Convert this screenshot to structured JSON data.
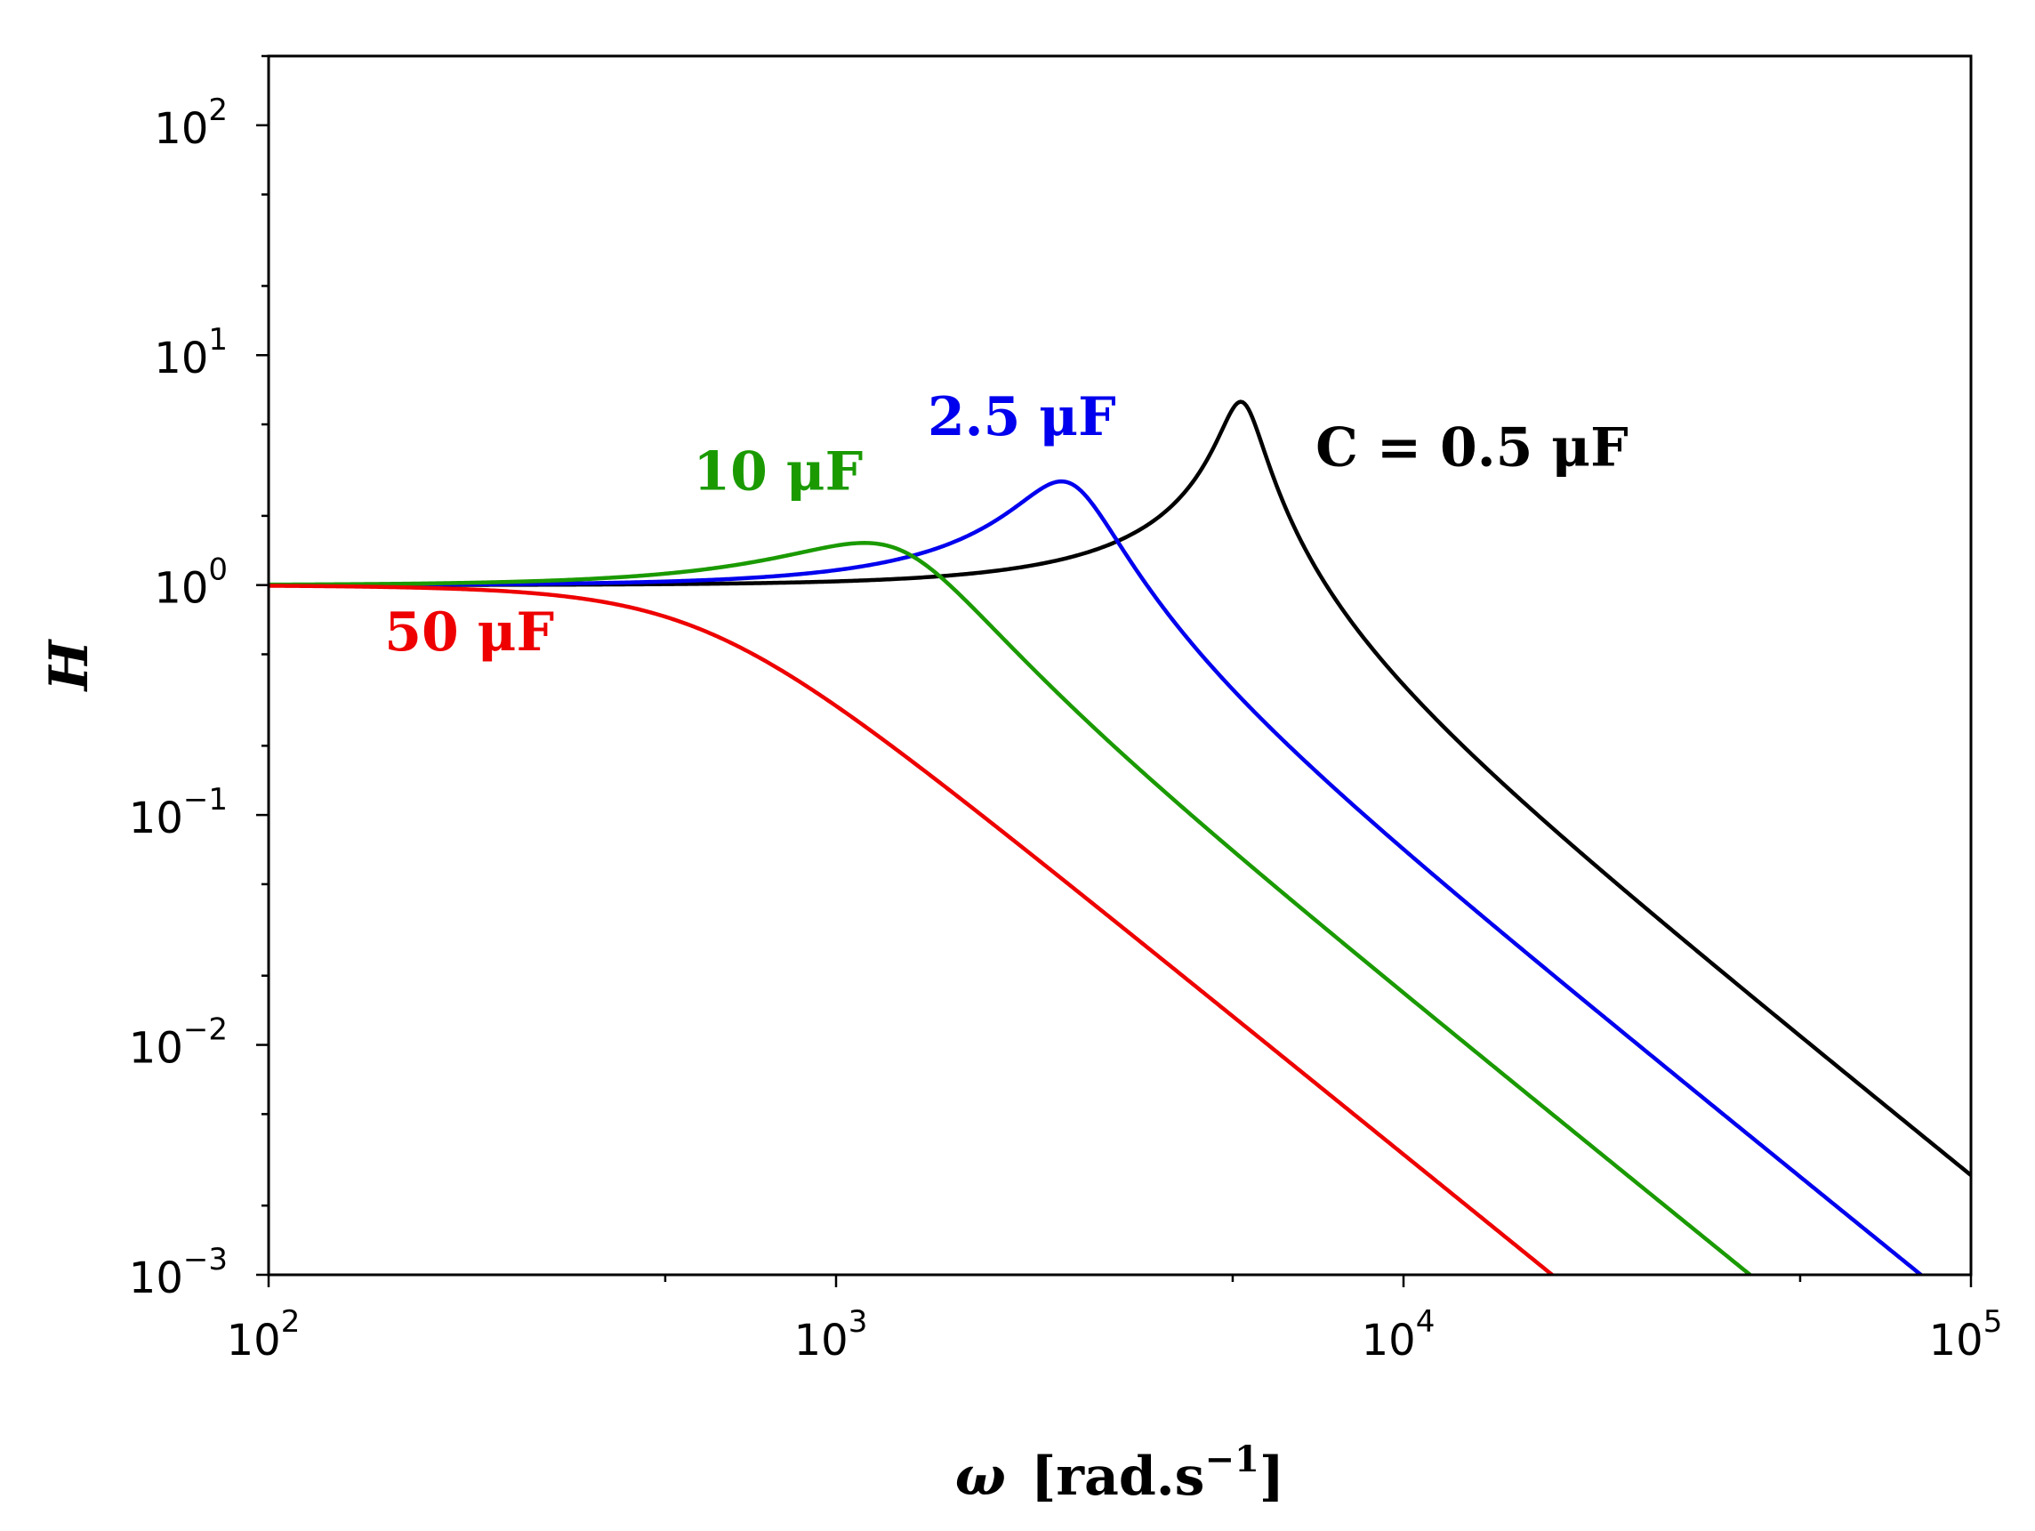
{
  "chart_data": {
    "type": "line",
    "title": "",
    "xscale": "log",
    "yscale": "log",
    "xlim": [
      100,
      100000
    ],
    "ylim": [
      0.001,
      200
    ],
    "xlabel": {
      "symbol": "ω",
      "unit_open": "[rad.s",
      "unit_exp": "−1",
      "unit_close": "]"
    },
    "ylabel": "H",
    "xticks": [
      {
        "value": 100,
        "base": "10",
        "exp": "2"
      },
      {
        "value": 1000,
        "base": "10",
        "exp": "3"
      },
      {
        "value": 10000,
        "base": "10",
        "exp": "4"
      },
      {
        "value": 100000,
        "base": "10",
        "exp": "5"
      }
    ],
    "yticks": [
      {
        "value": 0.001,
        "base": "10",
        "exp": "−3"
      },
      {
        "value": 0.01,
        "base": "10",
        "exp": "−2"
      },
      {
        "value": 0.1,
        "base": "10",
        "exp": "−1"
      },
      {
        "value": 1,
        "base": "10",
        "exp": "0"
      },
      {
        "value": 10,
        "base": "10",
        "exp": "1"
      },
      {
        "value": 100,
        "base": "10",
        "exp": "2"
      }
    ],
    "series": [
      {
        "name": "C = 0.5 μF",
        "label": "C = 0.5 μF",
        "color": "#000000",
        "w0": 5200,
        "zeta": 0.08,
        "label_at": {
          "x": 7000,
          "y": 3.3
        }
      },
      {
        "name": "2.5 μF",
        "label": "2.5 μF",
        "color": "#0000ee",
        "w0": 2580,
        "zeta": 0.18,
        "label_at": {
          "x": 1450,
          "y": 4.5
        }
      },
      {
        "name": "10 μF",
        "label": "10 μF",
        "color": "#1a9a00",
        "w0": 1290,
        "zeta": 0.35,
        "label_at": {
          "x": 560,
          "y": 2.6
        }
      },
      {
        "name": "50 μF",
        "label": "50 μF",
        "color": "#ee0000",
        "w0": 578,
        "zeta": 0.78,
        "label_at": {
          "x": 160,
          "y": 0.52
        }
      }
    ]
  }
}
